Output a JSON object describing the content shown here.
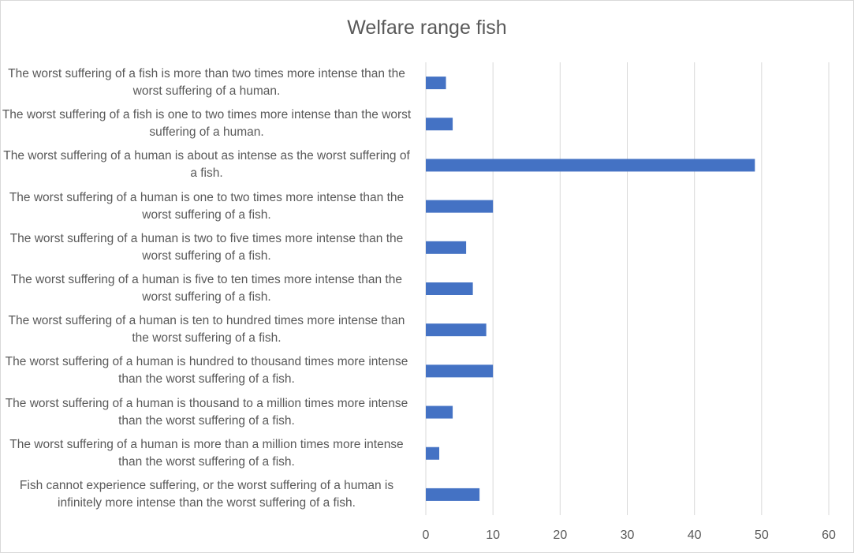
{
  "chart_data": {
    "type": "bar",
    "orientation": "horizontal",
    "title": "Welfare range fish",
    "xlabel": "",
    "ylabel": "",
    "categories": [
      "The worst suffering of a fish is more than two times more intense than the worst suffering of a human.",
      "The worst suffering of a fish is one to two times more intense than the worst suffering of a human.",
      "The worst suffering of a human is about as intense as the worst suffering of a fish.",
      "The worst suffering of a human is one to two times more intense than the worst suffering of a fish.",
      "The worst suffering of a human is two to five times more intense than the worst suffering of a fish.",
      "The worst suffering of a human is five to ten times more intense than the worst suffering of a fish.",
      "The worst suffering of a human is ten to hundred times more intense than the worst suffering of a fish.",
      "The worst suffering of a human is hundred to thousand times more intense than the worst suffering of a fish.",
      "The worst suffering of a human is thousand to a million times more intense than the worst suffering of a fish.",
      "The worst suffering of a human is more than a million times more intense than the worst suffering of a fish.",
      "Fish cannot experience suffering, or the worst suffering of a human is infinitely more intense than the worst suffering of a fish."
    ],
    "values": [
      3,
      4,
      49,
      10,
      6,
      7,
      9,
      10,
      4,
      2,
      8
    ],
    "xlim": [
      0,
      60
    ],
    "xticks": [
      0,
      10,
      20,
      30,
      40,
      50,
      60
    ],
    "grid": "vertical",
    "legend": "none",
    "bar_color": "#4472c4",
    "grid_color": "#d9d9d9"
  }
}
